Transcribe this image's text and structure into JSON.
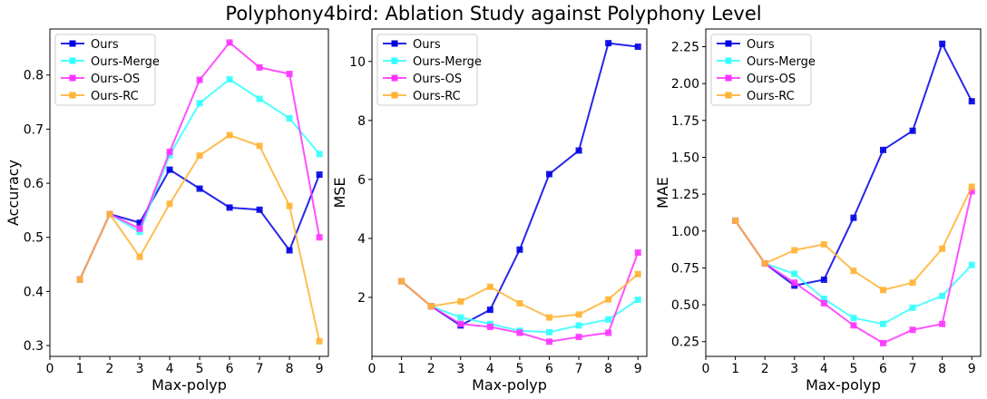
{
  "suptitle": "Polyphony4bird: Ablation Study against Polyphony Level",
  "chart_data": [
    {
      "type": "line",
      "xlabel": "Max-polyp",
      "ylabel": "Accuracy",
      "x": [
        1,
        2,
        3,
        4,
        5,
        6,
        7,
        8,
        9
      ],
      "xlim": [
        0,
        9.3
      ],
      "ylim": [
        0.28,
        0.885
      ],
      "xticks": [
        "0",
        "1",
        "2",
        "3",
        "4",
        "5",
        "6",
        "7",
        "8",
        "9"
      ],
      "yticks": [
        "0.3",
        "0.4",
        "0.5",
        "0.6",
        "0.7",
        "0.8"
      ],
      "legend": "top-left",
      "series": [
        {
          "name": "Ours",
          "color": "#0000e6",
          "values": [
            0.422,
            0.543,
            0.527,
            0.625,
            0.59,
            0.555,
            0.551,
            0.476,
            0.616
          ]
        },
        {
          "name": "Ours-Merge",
          "color": "#33ffff",
          "values": [
            0.422,
            0.543,
            0.51,
            0.652,
            0.748,
            0.792,
            0.756,
            0.72,
            0.654
          ]
        },
        {
          "name": "Ours-OS",
          "color": "#ff33ff",
          "values": [
            0.422,
            0.543,
            0.516,
            0.658,
            0.791,
            0.86,
            0.814,
            0.802,
            0.5
          ]
        },
        {
          "name": "Ours-RC",
          "color": "#ffb233",
          "values": [
            0.422,
            0.543,
            0.464,
            0.562,
            0.651,
            0.689,
            0.669,
            0.558,
            0.308
          ]
        }
      ]
    },
    {
      "type": "line",
      "xlabel": "Max-polyp",
      "ylabel": "MSE",
      "x": [
        1,
        2,
        3,
        4,
        5,
        6,
        7,
        8,
        9
      ],
      "xlim": [
        0,
        9.3
      ],
      "ylim": [
        0.0,
        11.1
      ],
      "xticks": [
        "0",
        "1",
        "2",
        "3",
        "4",
        "5",
        "6",
        "7",
        "8",
        "9"
      ],
      "yticks": [
        "2",
        "4",
        "6",
        "8",
        "10"
      ],
      "legend": "top-left",
      "series": [
        {
          "name": "Ours",
          "color": "#0000e6",
          "values": [
            2.55,
            1.7,
            1.05,
            1.58,
            3.62,
            6.18,
            6.98,
            10.62,
            10.5
          ]
        },
        {
          "name": "Ours-Merge",
          "color": "#33ffff",
          "values": [
            2.55,
            1.7,
            1.32,
            1.1,
            0.87,
            0.82,
            1.05,
            1.25,
            1.92
          ]
        },
        {
          "name": "Ours-OS",
          "color": "#ff33ff",
          "values": [
            2.55,
            1.7,
            1.1,
            1.0,
            0.8,
            0.5,
            0.66,
            0.8,
            3.52
          ]
        },
        {
          "name": "Ours-RC",
          "color": "#ffb233",
          "values": [
            2.55,
            1.7,
            1.86,
            2.36,
            1.8,
            1.32,
            1.42,
            1.93,
            2.79
          ]
        }
      ]
    },
    {
      "type": "line",
      "xlabel": "Max-polyp",
      "ylabel": "MAE",
      "x": [
        1,
        2,
        3,
        4,
        5,
        6,
        7,
        8,
        9
      ],
      "xlim": [
        0,
        9.3
      ],
      "ylim": [
        0.15,
        2.37
      ],
      "xticks": [
        "0",
        "1",
        "2",
        "3",
        "4",
        "5",
        "6",
        "7",
        "8",
        "9"
      ],
      "yticks": [
        "0.25",
        "0.50",
        "0.75",
        "1.00",
        "1.25",
        "1.50",
        "1.75",
        "2.00",
        "2.25"
      ],
      "legend": "top-left",
      "series": [
        {
          "name": "Ours",
          "color": "#0000e6",
          "values": [
            1.07,
            0.78,
            0.63,
            0.67,
            1.09,
            1.55,
            1.68,
            2.27,
            1.88
          ]
        },
        {
          "name": "Ours-Merge",
          "color": "#33ffff",
          "values": [
            1.07,
            0.78,
            0.71,
            0.54,
            0.41,
            0.37,
            0.48,
            0.56,
            0.77
          ]
        },
        {
          "name": "Ours-OS",
          "color": "#ff33ff",
          "values": [
            1.07,
            0.78,
            0.65,
            0.51,
            0.36,
            0.24,
            0.33,
            0.37,
            1.27
          ]
        },
        {
          "name": "Ours-RC",
          "color": "#ffb233",
          "values": [
            1.07,
            0.78,
            0.87,
            0.91,
            0.73,
            0.6,
            0.65,
            0.88,
            1.3
          ]
        }
      ]
    }
  ]
}
